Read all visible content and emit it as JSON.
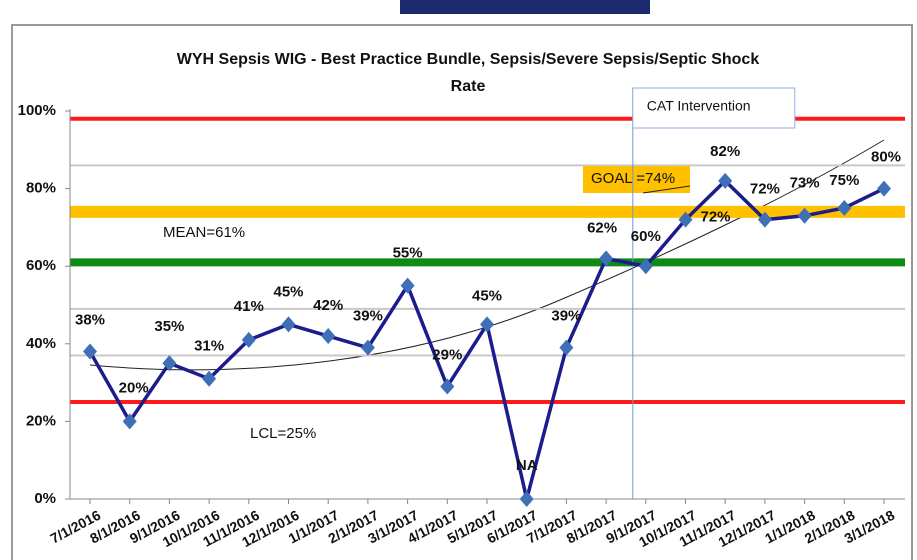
{
  "chart_data": {
    "type": "line",
    "title": [
      "WYH Sepsis WIG - Best Practice Bundle, Sepsis/Severe Sepsis/Septic Shock",
      "Rate"
    ],
    "categories": [
      "7/1/2016",
      "8/1/2016",
      "9/1/2016",
      "10/1/2016",
      "11/1/2016",
      "12/1/2016",
      "1/1/2017",
      "2/1/2017",
      "3/1/2017",
      "4/1/2017",
      "5/1/2017",
      "6/1/2017",
      "7/1/2017",
      "8/1/2017",
      "9/1/2017",
      "10/1/2017",
      "11/1/2017",
      "12/1/2017",
      "1/1/2018",
      "2/1/2018",
      "3/1/2018"
    ],
    "series": [
      {
        "color": "#1c1c8c",
        "marker_color": "#3f6fb6",
        "values": [
          38,
          20,
          35,
          31,
          41,
          45,
          42,
          39,
          55,
          29,
          45,
          0,
          39,
          62,
          60,
          72,
          82,
          72,
          73,
          75,
          80
        ],
        "value_labels": [
          "38%",
          "20%",
          "35%",
          "31%",
          "41%",
          "45%",
          "42%",
          "39%",
          "55%",
          "29%",
          "45%",
          "NA",
          "39%",
          "62%",
          "60%",
          "72%",
          "82%",
          "72%",
          "73%",
          "75%",
          "80%"
        ]
      }
    ],
    "ylim": [
      0,
      100
    ],
    "yticks": [
      {
        "value": 0,
        "label": "0%"
      },
      {
        "value": 20,
        "label": "20%"
      },
      {
        "value": 40,
        "label": "40%"
      },
      {
        "value": 60,
        "label": "60%"
      },
      {
        "value": 80,
        "label": "80%"
      },
      {
        "value": 100,
        "label": "100%"
      }
    ],
    "reference_lines": [
      {
        "value": 98,
        "color": "#ff1a1a"
      },
      {
        "value": 86,
        "color": "#c8c8c8"
      },
      {
        "value": 49,
        "color": "#c8c8c8"
      },
      {
        "value": 37,
        "color": "#c8c8c8"
      },
      {
        "value": 74,
        "color": "#ffc000",
        "label": "GOAL =74%"
      },
      {
        "value": 61,
        "color": "#0e8a16",
        "label": "MEAN=61%"
      },
      {
        "value": 25,
        "color": "#ff1a1a",
        "label": "LCL=25%"
      }
    ],
    "annotation": {
      "text": "CAT Intervention",
      "category": "9/1/2017"
    }
  }
}
